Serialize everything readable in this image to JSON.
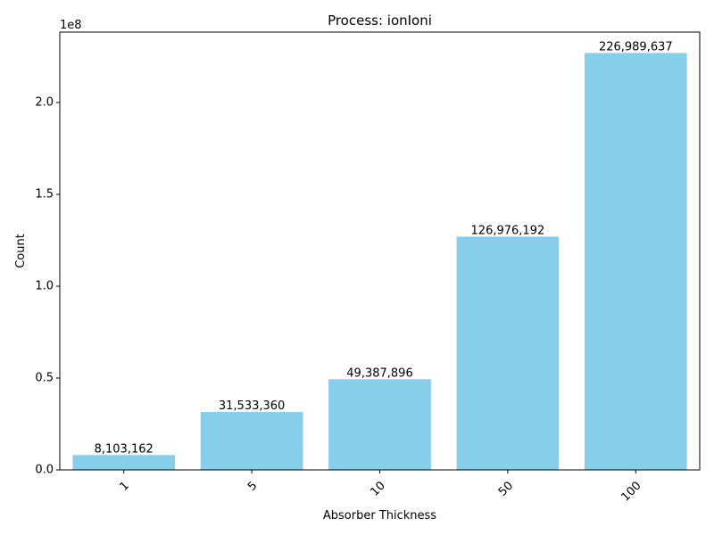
{
  "chart_data": {
    "type": "bar",
    "title": "Process: ionIoni",
    "xlabel": "Absorber Thickness",
    "ylabel": "Count",
    "y_scale_label": "1e8",
    "categories": [
      "1",
      "5",
      "10",
      "50",
      "100"
    ],
    "values": [
      8103162,
      31533360,
      49387896,
      126976192,
      226989637
    ],
    "value_labels": [
      "8,103,162",
      "31,533,360",
      "49,387,896",
      "126,976,192",
      "226,989,637"
    ],
    "y_ticks": [
      0,
      50000000,
      100000000,
      150000000,
      200000000
    ],
    "y_tick_labels": [
      "0.0",
      "0.5",
      "1.0",
      "1.5",
      "2.0"
    ],
    "ylim": [
      0,
      238339119
    ],
    "bar_color": "#87CEEB",
    "grid": false
  }
}
